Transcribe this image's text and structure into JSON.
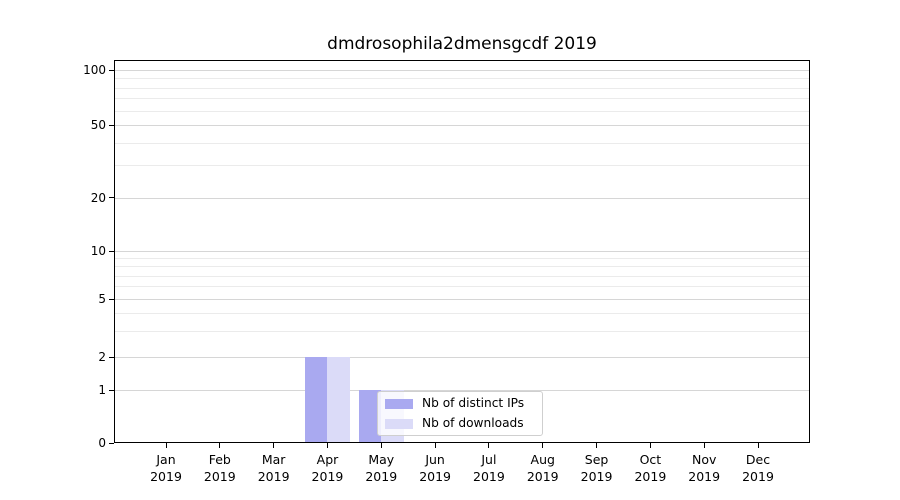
{
  "chart_data": {
    "type": "bar",
    "title": "dmdrosophila2dmensgcdf 2019",
    "categories": [
      "Jan",
      "Feb",
      "Mar",
      "Apr",
      "May",
      "Jun",
      "Jul",
      "Aug",
      "Sep",
      "Oct",
      "Nov",
      "Dec"
    ],
    "year_label": "2019",
    "series": [
      {
        "name": "Nb of distinct IPs",
        "color": "#a9a9f0",
        "values": [
          0,
          0,
          0,
          2,
          1,
          0,
          0,
          0,
          0,
          0,
          0,
          0
        ]
      },
      {
        "name": "Nb of downloads",
        "color": "#dbdbf8",
        "values": [
          0,
          0,
          0,
          2,
          1,
          0,
          0,
          0,
          0,
          0,
          0,
          0
        ]
      }
    ],
    "y_axis": {
      "scale": "symlog",
      "major_ticks": [
        0,
        1,
        2,
        5,
        10,
        20,
        50,
        100
      ],
      "minor_ticks": [
        3,
        4,
        6,
        7,
        8,
        9,
        30,
        40,
        60,
        70,
        80,
        90
      ],
      "range": [
        0,
        100
      ]
    },
    "grid": {
      "orientation": "horizontal",
      "major_color": "#d6d6d6",
      "minor_color": "#ebebeb"
    },
    "legend": {
      "position": "inside-lower-middle"
    }
  }
}
